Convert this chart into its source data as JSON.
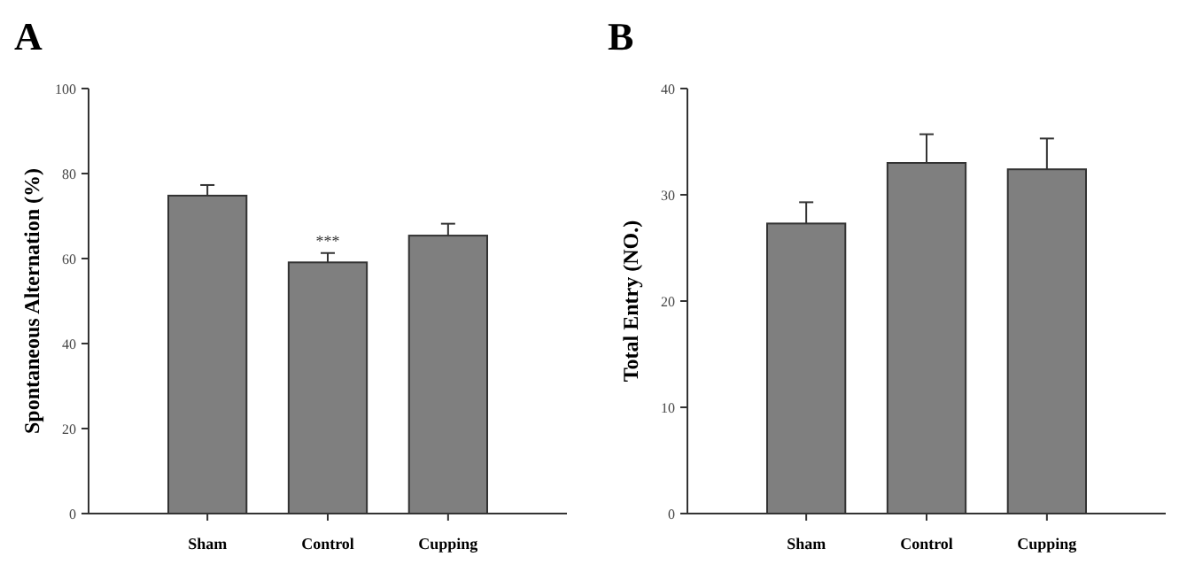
{
  "chart_data": [
    {
      "type": "bar",
      "title": "A",
      "ylabel": "Spontaneous Alternation (%)",
      "categories": [
        "Sham",
        "Control",
        "Cupping"
      ],
      "values": [
        74.8,
        59.1,
        65.4
      ],
      "errors": [
        [
          74.8,
          77.3
        ],
        [
          59.1,
          61.3
        ],
        [
          65.4,
          68.2
        ]
      ],
      "color": "#7f7f7f",
      "ylim": [
        0,
        100
      ],
      "yticks": [
        0,
        20,
        40,
        60,
        80,
        100
      ],
      "annotations": [
        {
          "text": "***",
          "x": "Control",
          "y": 61.3
        }
      ]
    },
    {
      "type": "bar",
      "title": "B",
      "ylabel": "Total Entry (NO.)",
      "categories": [
        "Sham",
        "Control",
        "Cupping"
      ],
      "values": [
        27.3,
        33.0,
        32.4
      ],
      "errors": [
        [
          27.3,
          29.3
        ],
        [
          33.0,
          35.7
        ],
        [
          32.4,
          35.3
        ]
      ],
      "color": "#7f7f7f",
      "ylim": [
        0,
        40
      ],
      "yticks": [
        0,
        10,
        20,
        30,
        40
      ]
    }
  ]
}
